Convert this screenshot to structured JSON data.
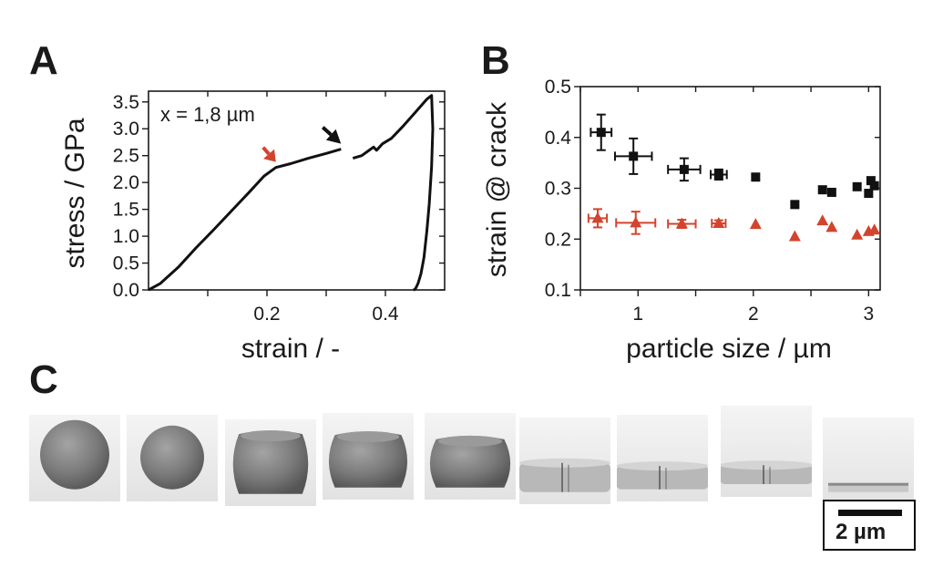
{
  "figure": {
    "panel_letters": [
      "A",
      "B",
      "C"
    ]
  },
  "chart_data": [
    {
      "panel": "A",
      "type": "line",
      "xlabel": "strain / -",
      "ylabel": "stress / GPa",
      "xlim": [
        0,
        0.5
      ],
      "ylim": [
        0,
        3.7
      ],
      "xticks_labeled": [
        0.2,
        0.4
      ],
      "xtick_labels": [
        "0.2",
        "0.4"
      ],
      "yticks": [
        0.0,
        0.5,
        1.0,
        1.5,
        2.0,
        2.5,
        3.0,
        3.5
      ],
      "ytick_labels": [
        "0.0",
        "0.5",
        "1.0",
        "1.5",
        "2.0",
        "2.5",
        "3.0",
        "3.5"
      ],
      "annotation": "x = 1,8 µm",
      "arrows": [
        {
          "color": "#d2442e",
          "points_to_x": 0.215,
          "points_to_y": 2.28
        },
        {
          "color": "#111111",
          "points_to_x": 0.325,
          "points_to_y": 2.62
        }
      ],
      "series": [
        {
          "segments": [
            {
              "x": [
                0.0,
                0.02,
                0.05,
                0.08,
                0.11,
                0.14,
                0.17,
                0.195,
                0.215,
                0.24,
                0.27,
                0.3,
                0.325
              ],
              "y": [
                0.0,
                0.12,
                0.42,
                0.78,
                1.12,
                1.47,
                1.82,
                2.12,
                2.28,
                2.35,
                2.45,
                2.54,
                2.62
              ]
            },
            {
              "x": [
                0.345,
                0.36,
                0.37,
                0.38,
                0.385,
                0.395,
                0.41,
                0.43,
                0.45,
                0.47,
                0.478,
                0.48,
                0.478,
                0.474,
                0.47,
                0.465,
                0.46,
                0.455,
                0.452,
                0.45,
                0.447
              ],
              "y": [
                2.45,
                2.5,
                2.58,
                2.66,
                2.6,
                2.72,
                2.82,
                3.05,
                3.3,
                3.55,
                3.62,
                3.0,
                2.3,
                1.6,
                1.1,
                0.6,
                0.3,
                0.12,
                0.05,
                0.01,
                0.0
              ]
            }
          ]
        }
      ]
    },
    {
      "panel": "B",
      "type": "scatter",
      "xlabel": "particle size / µm",
      "ylabel": "strain @ crack",
      "xlim": [
        0.5,
        3.1
      ],
      "ylim": [
        0.1,
        0.5
      ],
      "xticks": [
        1,
        2,
        3
      ],
      "xtick_labels": [
        "1",
        "2",
        "3"
      ],
      "yticks": [
        0.1,
        0.2,
        0.3,
        0.4,
        0.5
      ],
      "ytick_labels": [
        "0.1",
        "0.2",
        "0.3",
        "0.4",
        "0.5"
      ],
      "series": [
        {
          "marker": "square",
          "color": "#111111",
          "x": [
            0.68,
            0.96,
            1.4,
            1.7,
            2.02,
            2.36,
            2.6,
            2.68,
            2.9,
            3.0,
            3.02,
            3.05
          ],
          "y": [
            0.41,
            0.363,
            0.337,
            0.327,
            0.322,
            0.268,
            0.297,
            0.292,
            0.303,
            0.29,
            0.315,
            0.305
          ],
          "xerr": [
            0.09,
            0.16,
            0.14,
            0.07,
            0,
            0,
            0,
            0,
            0,
            0,
            0,
            0
          ],
          "yerr": [
            0.035,
            0.035,
            0.022,
            0.01,
            0,
            0,
            0,
            0,
            0,
            0,
            0,
            0
          ]
        },
        {
          "marker": "triangle",
          "color": "#d2442e",
          "x": [
            0.65,
            0.98,
            1.38,
            1.7,
            2.02,
            2.36,
            2.6,
            2.68,
            2.9,
            3.0,
            3.05
          ],
          "y": [
            0.241,
            0.232,
            0.23,
            0.231,
            0.229,
            0.205,
            0.236,
            0.223,
            0.208,
            0.215,
            0.218
          ],
          "xerr": [
            0.08,
            0.17,
            0.12,
            0.06,
            0,
            0,
            0,
            0,
            0,
            0,
            0
          ],
          "yerr": [
            0.018,
            0.022,
            0.008,
            0.006,
            0,
            0,
            0,
            0,
            0,
            0,
            0
          ]
        }
      ]
    }
  ],
  "panel_c": {
    "scale_bar_label": "2 µm",
    "frames": [
      {
        "shape": "sphere",
        "level": 1.0
      },
      {
        "shape": "sphere",
        "level": 0.92
      },
      {
        "shape": "barrel",
        "level": 0.82
      },
      {
        "shape": "barrel",
        "level": 0.72
      },
      {
        "shape": "barrel",
        "level": 0.66
      },
      {
        "shape": "disk",
        "level": 0.4
      },
      {
        "shape": "disk",
        "level": 0.32
      },
      {
        "shape": "disk",
        "level": 0.26
      },
      {
        "shape": "flat",
        "level": 0.1
      }
    ]
  }
}
